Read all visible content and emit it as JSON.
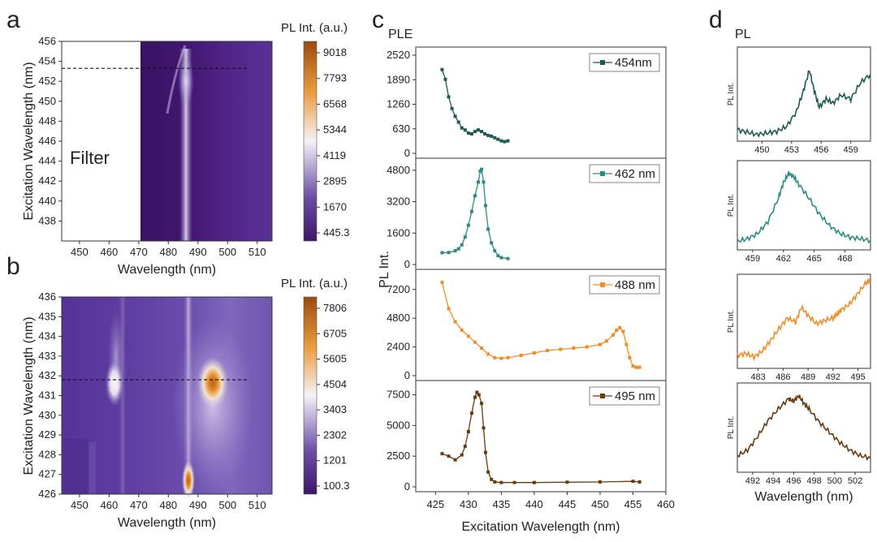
{
  "figure": {
    "panel_letters": [
      "a",
      "b",
      "c",
      "d"
    ],
    "filter_label": "Filter",
    "panel_c_title": "PLE",
    "panel_d_title": "PL"
  },
  "colors": {
    "dark_teal": "#1c5b54",
    "teal": "#2a8c82",
    "orange": "#f28c28",
    "brown": "#6b3a0f"
  },
  "chart_data": [
    {
      "id": "a",
      "type": "heatmap",
      "xlabel": "Wavelength (nm)",
      "ylabel": "Excitation Wavelength (nm)",
      "xlim": [
        444,
        515
      ],
      "ylim": [
        436,
        456
      ],
      "xticks": [
        "450",
        "460",
        "470",
        "480",
        "490",
        "500",
        "510"
      ],
      "yticks": [
        "438",
        "440",
        "442",
        "444",
        "446",
        "448",
        "450",
        "452",
        "454",
        "456"
      ],
      "filter_region_x": [
        444,
        470
      ],
      "dashed_line_y": 453.3,
      "colorbar_title": "PL Int. (a.u.)",
      "colorbar_ticks": [
        "9018",
        "7793",
        "6568",
        "5344",
        "4119",
        "2895",
        "1670",
        "445.3"
      ]
    },
    {
      "id": "b",
      "type": "heatmap",
      "xlabel": "Wavelength (nm)",
      "ylabel": "Excitation Wavelength (nm)",
      "xlim": [
        444,
        515
      ],
      "ylim": [
        426,
        436
      ],
      "xticks": [
        "450",
        "460",
        "470",
        "480",
        "490",
        "500",
        "510"
      ],
      "yticks": [
        "426",
        "427",
        "428",
        "429",
        "430",
        "431",
        "432",
        "433",
        "434",
        "435",
        "436"
      ],
      "dashed_line_y": 431.8,
      "colorbar_title": "PL Int. (a.u.)",
      "colorbar_ticks": [
        "7806",
        "6705",
        "5605",
        "4504",
        "3403",
        "2302",
        "1201",
        "100.3"
      ]
    },
    {
      "id": "c",
      "type": "line",
      "xlabel": "Excitation Wavelength (nm)",
      "ylabel": "PL Int.",
      "xlim": [
        422,
        460
      ],
      "xticks": [
        "425",
        "430",
        "435",
        "440",
        "445",
        "450",
        "455",
        "460"
      ],
      "series": [
        {
          "name": "454nm",
          "color": "#1c5b54",
          "ylim": [
            0,
            2520
          ],
          "yticks": [
            "0",
            "630",
            "1260",
            "1890",
            "2520"
          ],
          "x": [
            426,
            426.5,
            427,
            427.5,
            428,
            428.5,
            429,
            429.5,
            430,
            430.5,
            431,
            431.5,
            432,
            432.5,
            433,
            433.5,
            434,
            434.5,
            435,
            435.5,
            436
          ],
          "values": [
            2150,
            1900,
            1450,
            1150,
            950,
            800,
            650,
            600,
            520,
            500,
            560,
            600,
            560,
            500,
            460,
            440,
            400,
            360,
            320,
            300,
            320
          ]
        },
        {
          "name": "462 nm",
          "color": "#2a8c82",
          "ylim": [
            0,
            5000
          ],
          "yticks": [
            "0",
            "1600",
            "3200",
            "4800"
          ],
          "x": [
            426,
            427,
            428,
            428.5,
            429,
            429.5,
            430,
            430.5,
            431,
            431.5,
            431.8,
            432,
            432.3,
            432.6,
            433,
            433.5,
            434,
            434.5,
            435,
            436
          ],
          "values": [
            600,
            610,
            700,
            800,
            1000,
            1400,
            2000,
            2700,
            3500,
            4200,
            4750,
            4850,
            4200,
            3000,
            1800,
            1100,
            700,
            450,
            350,
            300
          ]
        },
        {
          "name": "488 nm",
          "color": "#f28c28",
          "ylim": [
            0,
            8200
          ],
          "yticks": [
            "0",
            "2400",
            "4800",
            "7200"
          ],
          "x": [
            426,
            427,
            428,
            429,
            430,
            431,
            432,
            433,
            434,
            435,
            436,
            438,
            440,
            442,
            444,
            446,
            448,
            450,
            451,
            452,
            452.5,
            453,
            453.5,
            454,
            454.5,
            455,
            455.5,
            456
          ],
          "values": [
            7800,
            5600,
            4500,
            3800,
            3300,
            2800,
            2300,
            1800,
            1500,
            1450,
            1500,
            1700,
            1900,
            2100,
            2200,
            2300,
            2400,
            2600,
            2900,
            3400,
            3800,
            4000,
            3700,
            2600,
            1500,
            800,
            700,
            700
          ]
        },
        {
          "name": "495 nm",
          "color": "#6b3a0f",
          "ylim": [
            0,
            8000
          ],
          "yticks": [
            "0",
            "2500",
            "5000",
            "7500"
          ],
          "x": [
            426,
            427,
            428,
            429,
            429.5,
            430,
            430.5,
            431,
            431.3,
            431.6,
            432,
            432.3,
            432.6,
            433,
            433.5,
            434,
            435,
            437,
            440,
            445,
            450,
            455,
            456
          ],
          "values": [
            2700,
            2500,
            2200,
            2600,
            3300,
            4500,
            6000,
            7300,
            7700,
            7500,
            6800,
            4800,
            2800,
            1200,
            600,
            400,
            350,
            350,
            350,
            380,
            400,
            450,
            400
          ]
        }
      ]
    },
    {
      "id": "d",
      "type": "line",
      "xlabel": "Wavelength (nm)",
      "ylabel": "PL Int.",
      "subplots": [
        {
          "color": "#1c5b54",
          "xlim": [
            447.5,
            461
          ],
          "xticks": [
            "450",
            "453",
            "456",
            "459"
          ],
          "x": [
            447.5,
            448.5,
            449.5,
            450.5,
            451.5,
            452.5,
            453.5,
            454.2,
            454.8,
            455.3,
            455.8,
            456.5,
            457.2,
            458,
            459,
            460,
            461
          ],
          "values": [
            0.08,
            0.05,
            0.02,
            0.04,
            0.06,
            0.12,
            0.3,
            0.55,
            0.8,
            0.55,
            0.35,
            0.45,
            0.4,
            0.5,
            0.45,
            0.65,
            0.75
          ]
        },
        {
          "color": "#2a8c82",
          "xlim": [
            457.5,
            470.5
          ],
          "xticks": [
            "459",
            "462",
            "465",
            "468"
          ],
          "x": [
            457.5,
            458.5,
            459.5,
            460.5,
            461.5,
            462,
            462.5,
            463,
            463.5,
            464.5,
            465.5,
            466.5,
            467.5,
            468.5,
            469.5,
            470.5
          ],
          "values": [
            0.05,
            0.08,
            0.15,
            0.3,
            0.6,
            0.8,
            0.92,
            0.88,
            0.78,
            0.6,
            0.4,
            0.25,
            0.15,
            0.1,
            0.08,
            0.06
          ]
        },
        {
          "color": "#f28c28",
          "xlim": [
            480.5,
            496.5
          ],
          "xticks": [
            "483",
            "486",
            "489",
            "492",
            "495"
          ],
          "x": [
            480.5,
            481.5,
            482.5,
            483.5,
            484.5,
            485.5,
            486.5,
            487.5,
            488.2,
            489,
            490,
            491,
            492,
            492.5,
            493,
            494,
            495,
            496,
            496.5
          ],
          "values": [
            0.1,
            0.12,
            0.08,
            0.15,
            0.28,
            0.42,
            0.55,
            0.5,
            0.68,
            0.58,
            0.48,
            0.52,
            0.55,
            0.6,
            0.65,
            0.72,
            0.85,
            0.98,
            1.0
          ]
        },
        {
          "color": "#6b3a0f",
          "xlim": [
            490.5,
            503.5
          ],
          "xticks": [
            "492",
            "494",
            "496",
            "498",
            "500",
            "502"
          ],
          "x": [
            490.5,
            491.5,
            492.5,
            493.5,
            494.5,
            495.5,
            496,
            496.5,
            497,
            497.5,
            498.5,
            499.5,
            500.5,
            501.5,
            502.5,
            503.5
          ],
          "values": [
            0.15,
            0.22,
            0.4,
            0.6,
            0.75,
            0.88,
            0.85,
            0.92,
            0.82,
            0.75,
            0.58,
            0.45,
            0.32,
            0.22,
            0.15,
            0.12
          ]
        }
      ]
    }
  ]
}
